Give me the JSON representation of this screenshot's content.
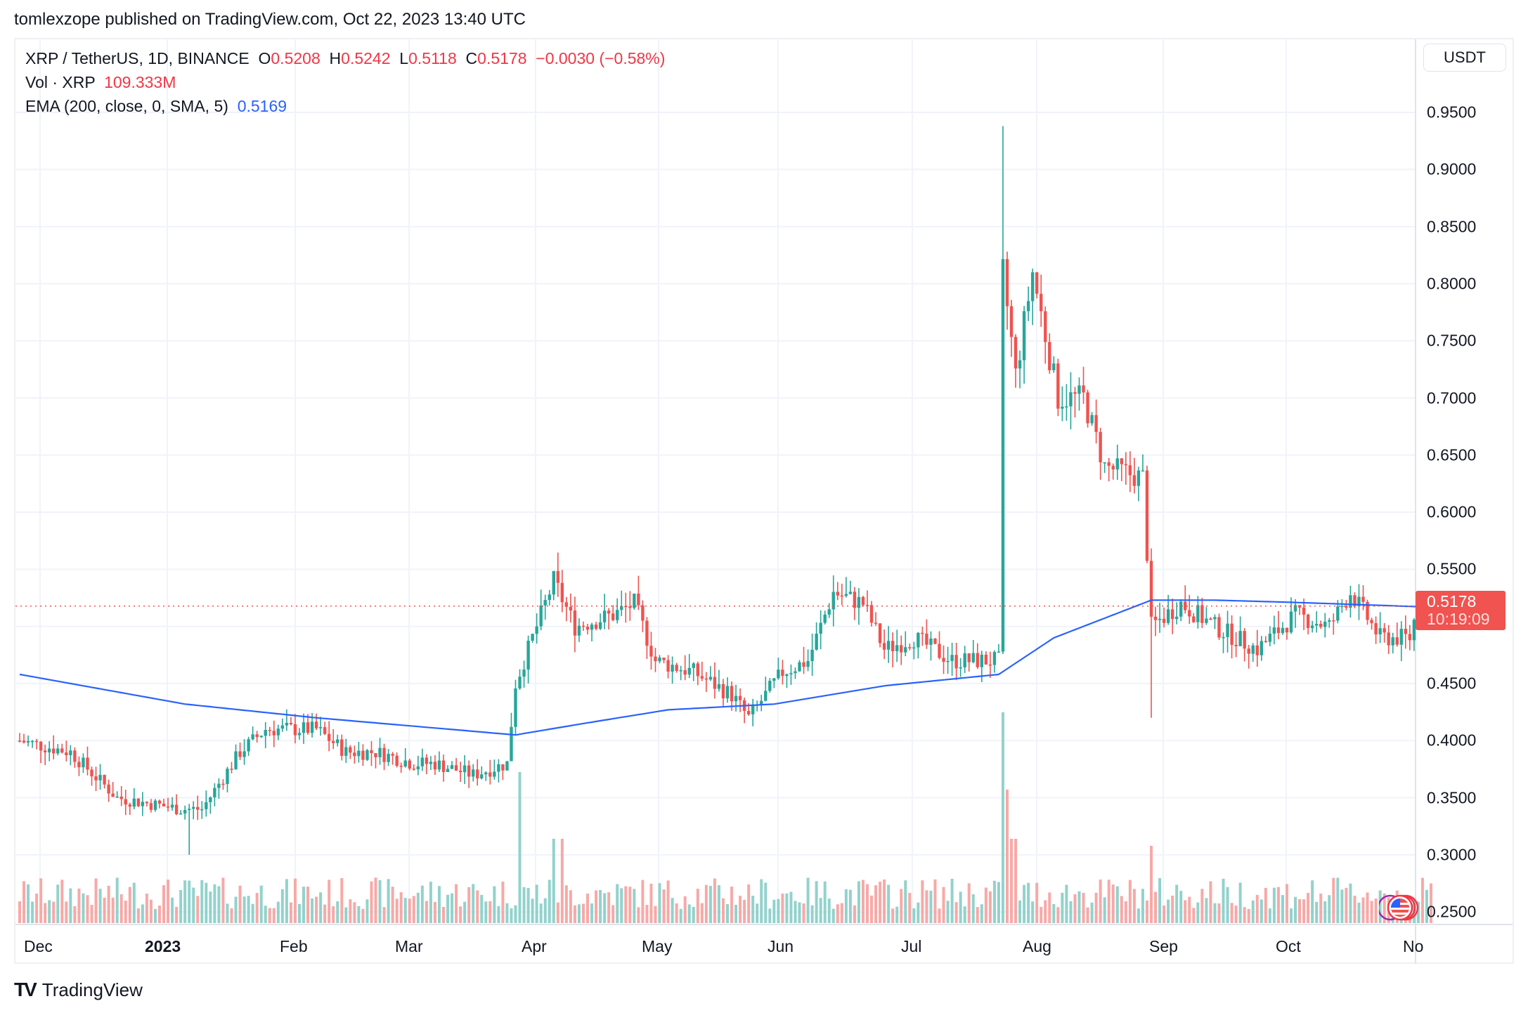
{
  "header": {
    "published": "tomlexzope published on TradingView.com, Oct 22, 2023 13:40 UTC"
  },
  "legend": {
    "symbol": "XRP / TetherUS, 1D, BINANCE",
    "o_label": "O",
    "o": "0.5208",
    "h_label": "H",
    "h": "0.5242",
    "l_label": "L",
    "l": "0.5118",
    "c_label": "C",
    "c": "0.5178",
    "change": "−0.0030 (−0.58%)",
    "vol_label": "Vol · XRP",
    "vol": "109.333M",
    "ema_label": "EMA (200, close, 0, SMA, 5)",
    "ema": "0.5169"
  },
  "axis": {
    "currency": "USDT",
    "price_labels": [
      "0.9500",
      "0.9000",
      "0.8500",
      "0.8000",
      "0.7500",
      "0.7000",
      "0.6500",
      "0.6000",
      "0.5500",
      "0.4500",
      "0.4000",
      "0.3500",
      "0.3000",
      "0.2500"
    ],
    "last_price": "0.5178",
    "countdown": "10:19:09",
    "time_labels": [
      "Dec",
      "2023",
      "Feb",
      "Mar",
      "Apr",
      "May",
      "Jun",
      "Jul",
      "Aug",
      "Sep",
      "Oct",
      "No"
    ]
  },
  "footer": {
    "brand": "TradingView",
    "logo": "TV"
  },
  "colors": {
    "up": "#26a69a",
    "down": "#ef5350",
    "up_vol": "#92d2cc",
    "down_vol": "#f7a9a7",
    "ema": "#2962ff",
    "grid": "#f0f3fa",
    "last_price": "#f05350"
  },
  "chart_data": {
    "type": "candlestick",
    "title": "XRP / TetherUS, 1D, BINANCE",
    "ylabel": "USDT",
    "ylim": [
      0.24,
      0.97
    ],
    "x_range": [
      "2022-11-23",
      "2023-10-22"
    ],
    "close_path": [
      [
        "2022-11-23",
        0.4
      ],
      [
        "2022-12-05",
        0.39
      ],
      [
        "2022-12-16",
        0.35
      ],
      [
        "2022-12-31",
        0.34
      ],
      [
        "2023-01-05",
        0.34
      ],
      [
        "2023-01-14",
        0.39
      ],
      [
        "2023-01-20",
        0.41
      ],
      [
        "2023-02-01",
        0.41
      ],
      [
        "2023-02-08",
        0.39
      ],
      [
        "2023-02-15",
        0.39
      ],
      [
        "2023-02-24",
        0.38
      ],
      [
        "2023-03-01",
        0.38
      ],
      [
        "2023-03-10",
        0.37
      ],
      [
        "2023-03-18",
        0.38
      ],
      [
        "2023-03-20",
        0.45
      ],
      [
        "2023-03-29",
        0.54
      ],
      [
        "2023-04-03",
        0.5
      ],
      [
        "2023-04-12",
        0.51
      ],
      [
        "2023-04-17",
        0.52
      ],
      [
        "2023-04-22",
        0.47
      ],
      [
        "2023-05-01",
        0.46
      ],
      [
        "2023-05-10",
        0.44
      ],
      [
        "2023-05-14",
        0.42
      ],
      [
        "2023-05-22",
        0.46
      ],
      [
        "2023-05-28",
        0.47
      ],
      [
        "2023-06-03",
        0.53
      ],
      [
        "2023-06-10",
        0.52
      ],
      [
        "2023-06-15",
        0.48
      ],
      [
        "2023-06-22",
        0.49
      ],
      [
        "2023-07-01",
        0.47
      ],
      [
        "2023-07-12",
        0.47
      ],
      [
        "2023-07-13",
        0.81
      ],
      [
        "2023-07-16",
        0.72
      ],
      [
        "2023-07-20",
        0.81
      ],
      [
        "2023-07-26",
        0.7
      ],
      [
        "2023-08-01",
        0.7
      ],
      [
        "2023-08-06",
        0.64
      ],
      [
        "2023-08-15",
        0.63
      ],
      [
        "2023-08-17",
        0.5
      ],
      [
        "2023-08-24",
        0.52
      ],
      [
        "2023-09-01",
        0.5
      ],
      [
        "2023-09-11",
        0.48
      ],
      [
        "2023-09-20",
        0.51
      ],
      [
        "2023-09-28",
        0.5
      ],
      [
        "2023-10-03",
        0.53
      ],
      [
        "2023-10-10",
        0.49
      ],
      [
        "2023-10-17",
        0.49
      ],
      [
        "2023-10-19",
        0.52
      ],
      [
        "2023-10-22",
        0.5178
      ]
    ],
    "notable": {
      "high": {
        "date": "2023-07-13",
        "value": 0.938
      },
      "low": {
        "date": "2023-01-02",
        "value": 0.3
      },
      "aug17_low": 0.42
    },
    "ema_200": [
      [
        "2022-11-23",
        0.458
      ],
      [
        "2023-01-01",
        0.432
      ],
      [
        "2023-02-01",
        0.42
      ],
      [
        "2023-03-20",
        0.405
      ],
      [
        "2023-04-05",
        0.415
      ],
      [
        "2023-04-25",
        0.427
      ],
      [
        "2023-05-20",
        0.432
      ],
      [
        "2023-06-15",
        0.448
      ],
      [
        "2023-07-12",
        0.458
      ],
      [
        "2023-07-25",
        0.49
      ],
      [
        "2023-08-17",
        0.523
      ],
      [
        "2023-09-01",
        0.523
      ],
      [
        "2023-09-20",
        0.521
      ],
      [
        "2023-10-22",
        0.5169
      ]
    ],
    "volume_note": "Volume bars at bottom; spikes on 2023-03-21 and 2023-07-13"
  }
}
